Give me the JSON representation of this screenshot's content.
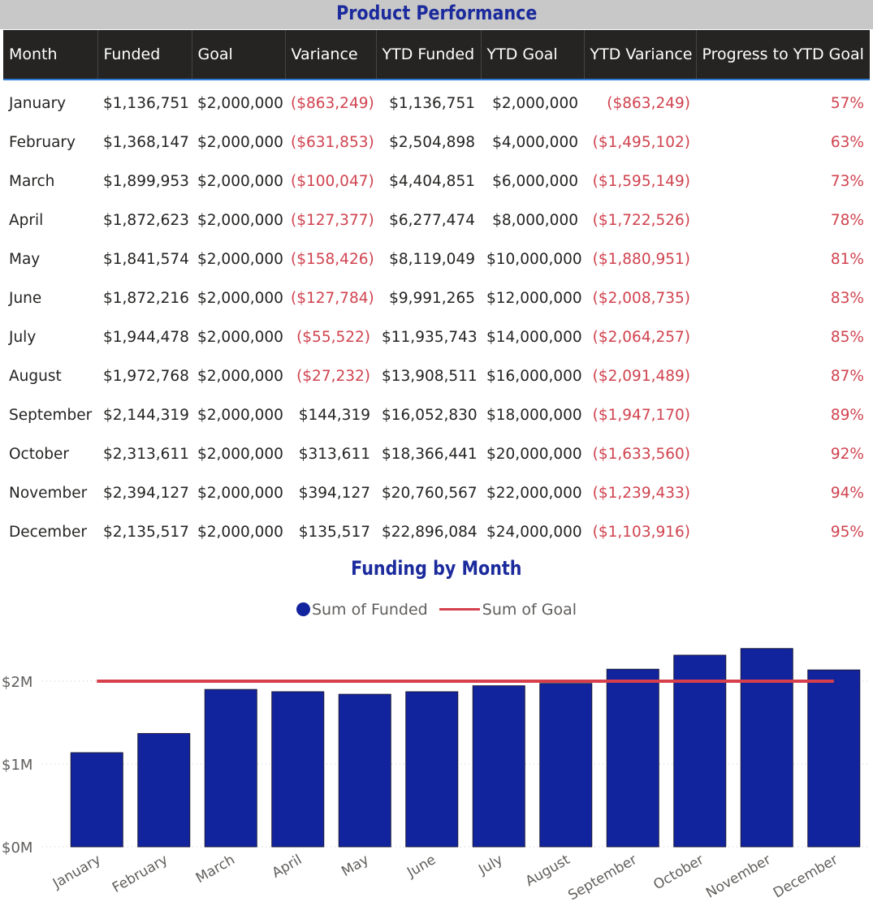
{
  "table": {
    "title": "Product Performance",
    "columns": [
      "Month",
      "Funded",
      "Goal",
      "Variance",
      "YTD Funded",
      "YTD Goal",
      "YTD Variance",
      "Progress to YTD Goal"
    ],
    "rows": [
      {
        "month": "January",
        "funded": "$1,136,751",
        "goal": "$2,000,000",
        "variance": "($863,249)",
        "ytd_funded": "$1,136,751",
        "ytd_goal": "$2,000,000",
        "ytd_variance": "($863,249)",
        "progress": "57%"
      },
      {
        "month": "February",
        "funded": "$1,368,147",
        "goal": "$2,000,000",
        "variance": "($631,853)",
        "ytd_funded": "$2,504,898",
        "ytd_goal": "$4,000,000",
        "ytd_variance": "($1,495,102)",
        "progress": "63%"
      },
      {
        "month": "March",
        "funded": "$1,899,953",
        "goal": "$2,000,000",
        "variance": "($100,047)",
        "ytd_funded": "$4,404,851",
        "ytd_goal": "$6,000,000",
        "ytd_variance": "($1,595,149)",
        "progress": "73%"
      },
      {
        "month": "April",
        "funded": "$1,872,623",
        "goal": "$2,000,000",
        "variance": "($127,377)",
        "ytd_funded": "$6,277,474",
        "ytd_goal": "$8,000,000",
        "ytd_variance": "($1,722,526)",
        "progress": "78%"
      },
      {
        "month": "May",
        "funded": "$1,841,574",
        "goal": "$2,000,000",
        "variance": "($158,426)",
        "ytd_funded": "$8,119,049",
        "ytd_goal": "$10,000,000",
        "ytd_variance": "($1,880,951)",
        "progress": "81%"
      },
      {
        "month": "June",
        "funded": "$1,872,216",
        "goal": "$2,000,000",
        "variance": "($127,784)",
        "ytd_funded": "$9,991,265",
        "ytd_goal": "$12,000,000",
        "ytd_variance": "($2,008,735)",
        "progress": "83%"
      },
      {
        "month": "July",
        "funded": "$1,944,478",
        "goal": "$2,000,000",
        "variance": "($55,522)",
        "ytd_funded": "$11,935,743",
        "ytd_goal": "$14,000,000",
        "ytd_variance": "($2,064,257)",
        "progress": "85%"
      },
      {
        "month": "August",
        "funded": "$1,972,768",
        "goal": "$2,000,000",
        "variance": "($27,232)",
        "ytd_funded": "$13,908,511",
        "ytd_goal": "$16,000,000",
        "ytd_variance": "($2,091,489)",
        "progress": "87%"
      },
      {
        "month": "September",
        "funded": "$2,144,319",
        "goal": "$2,000,000",
        "variance": "$144,319",
        "ytd_funded": "$16,052,830",
        "ytd_goal": "$18,000,000",
        "ytd_variance": "($1,947,170)",
        "progress": "89%"
      },
      {
        "month": "October",
        "funded": "$2,313,611",
        "goal": "$2,000,000",
        "variance": "$313,611",
        "ytd_funded": "$18,366,441",
        "ytd_goal": "$20,000,000",
        "ytd_variance": "($1,633,560)",
        "progress": "92%"
      },
      {
        "month": "November",
        "funded": "$2,394,127",
        "goal": "$2,000,000",
        "variance": "$394,127",
        "ytd_funded": "$20,760,567",
        "ytd_goal": "$22,000,000",
        "ytd_variance": "($1,239,433)",
        "progress": "94%"
      },
      {
        "month": "December",
        "funded": "$2,135,517",
        "goal": "$2,000,000",
        "variance": "$135,517",
        "ytd_funded": "$22,896,084",
        "ytd_goal": "$24,000,000",
        "ytd_variance": "($1,103,916)",
        "progress": "95%"
      }
    ]
  },
  "chart_data": {
    "type": "bar",
    "title": "Funding by Month",
    "categories": [
      "January",
      "February",
      "March",
      "April",
      "May",
      "June",
      "July",
      "August",
      "September",
      "October",
      "November",
      "December"
    ],
    "series": [
      {
        "name": "Sum of Funded",
        "kind": "bar",
        "color": "#12239e",
        "values": [
          1136751,
          1368147,
          1899953,
          1872623,
          1841574,
          1872216,
          1944478,
          1972768,
          2144319,
          2313611,
          2394127,
          2135517
        ]
      },
      {
        "name": "Sum of Goal",
        "kind": "line",
        "color": "#d6404d",
        "values": [
          2000000,
          2000000,
          2000000,
          2000000,
          2000000,
          2000000,
          2000000,
          2000000,
          2000000,
          2000000,
          2000000,
          2000000
        ]
      }
    ],
    "yticks": [
      {
        "value": 0,
        "label": "$0M"
      },
      {
        "value": 1000000,
        "label": "$1M"
      },
      {
        "value": 2000000,
        "label": "$2M"
      }
    ],
    "ylim": [
      0,
      2400000
    ],
    "legend_position": "top-center",
    "grid": true,
    "xlabel": "",
    "ylabel": ""
  }
}
